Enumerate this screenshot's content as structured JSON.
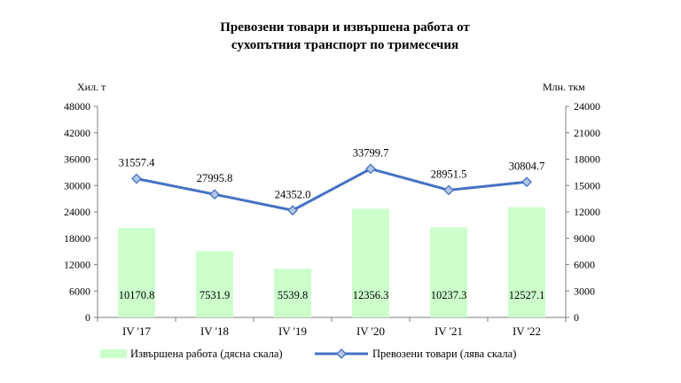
{
  "chart_data": {
    "type": "bar+line",
    "title_lines": [
      "Превозени товари и извършена работа от",
      "сухопътния транспорт по тримесечия"
    ],
    "left_axis_unit": "Хил. т",
    "right_axis_unit": "Млн. ткм",
    "categories": [
      "IV '17",
      "IV '18",
      "IV '19",
      "IV '20",
      "IV '21",
      "IV '22"
    ],
    "left_ylim": [
      0,
      48000
    ],
    "left_ticks": [
      "0",
      "6000",
      "12000",
      "18000",
      "24000",
      "30000",
      "36000",
      "42000",
      "48000"
    ],
    "right_ylim": [
      0,
      24000
    ],
    "right_ticks": [
      "0",
      "3000",
      "6000",
      "9000",
      "12000",
      "15000",
      "18000",
      "21000",
      "24000"
    ],
    "series": [
      {
        "name": "Извършена работа (дясна скала)",
        "type": "bar",
        "axis": "right",
        "color": "#ccffcc",
        "values": [
          10170.8,
          7531.9,
          5539.8,
          12356.3,
          10237.3,
          12527.1
        ],
        "labels": [
          "10170.8",
          "7531.9",
          "5539.8",
          "12356.3",
          "10237.3",
          "12527.1"
        ]
      },
      {
        "name": "Превозени товари (лява скала)",
        "type": "line",
        "axis": "left",
        "color": "#4472c4",
        "marker_fill": "#b4c7e7",
        "values": [
          31557.4,
          27995.8,
          24352.0,
          33799.7,
          28951.5,
          30804.7
        ],
        "labels": [
          "31557.4",
          "27995.8",
          "24352.0",
          "33799.7",
          "28951.5",
          "30804.7"
        ]
      }
    ],
    "grid": false,
    "legend_position": "bottom"
  }
}
